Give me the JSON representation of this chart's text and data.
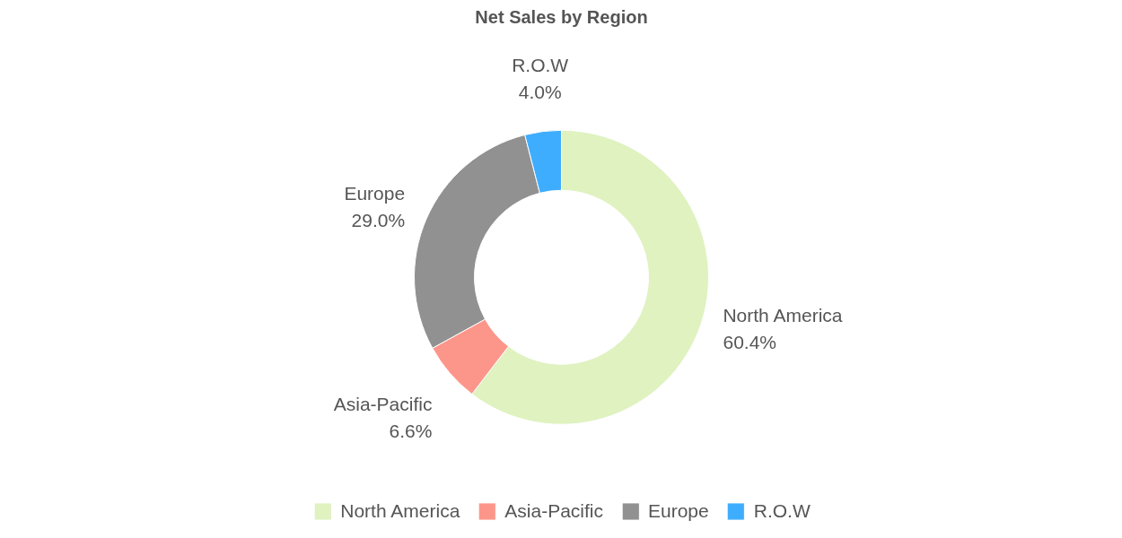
{
  "chart_data": {
    "type": "donut",
    "title": "Net Sales by Region",
    "categories": [
      "North America",
      "Asia-Pacific",
      "Europe",
      "R.O.W"
    ],
    "values": [
      60.4,
      6.6,
      29.0,
      4.0
    ],
    "value_labels": [
      "60.4%",
      "6.6%",
      "29.0%",
      "4.0%"
    ],
    "colors": [
      "#dff2c0",
      "#fd968a",
      "#919191",
      "#3fadfd"
    ],
    "legend": "bottom"
  }
}
